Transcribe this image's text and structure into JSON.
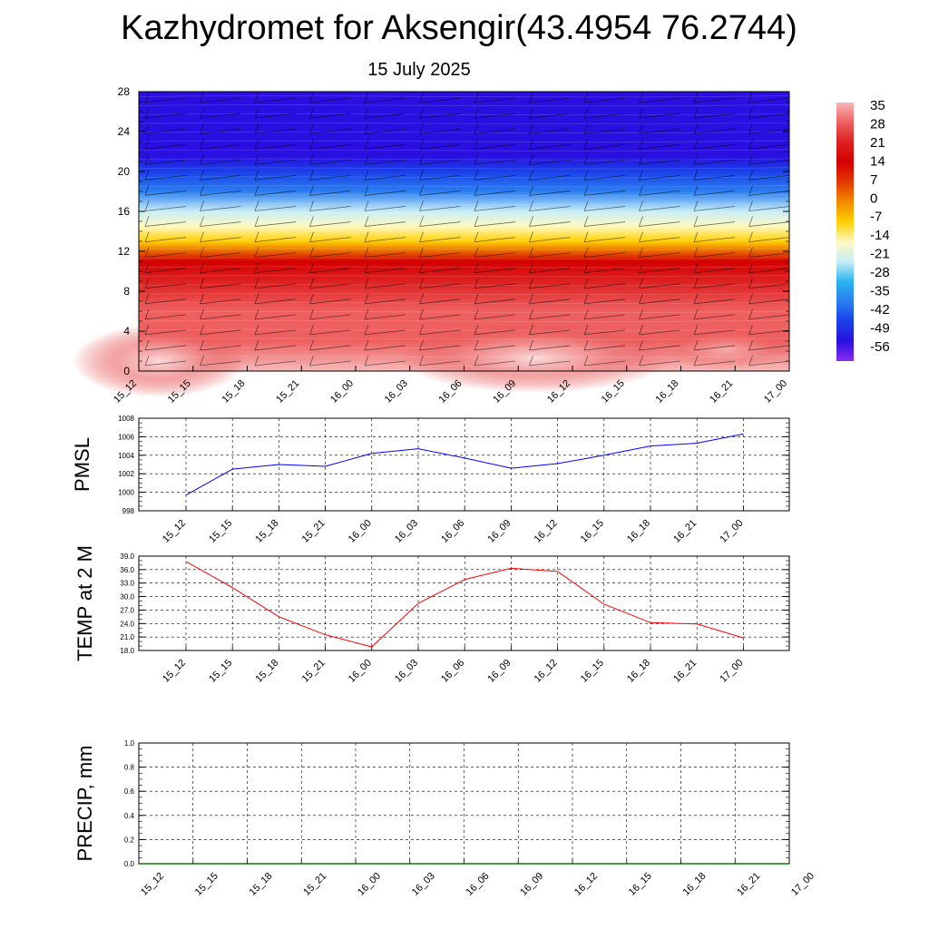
{
  "header": {
    "title": "Kazhydromet for Aksengir(43.4954 76.2744)",
    "subtitle": "15 July 2025"
  },
  "colorbar": {
    "labels": [
      "35",
      "28",
      "21",
      "14",
      "7",
      "0",
      "-7",
      "-14",
      "-21",
      "-28",
      "-35",
      "-42",
      "-49",
      "-56"
    ],
    "colors": [
      "#f6b8b8",
      "#ee6060",
      "#dd2020",
      "#d40000",
      "#e33a00",
      "#f28a00",
      "#ffd000",
      "#fff8c0",
      "#c8eef8",
      "#2ab4ee",
      "#2a7ef0",
      "#1a40e8",
      "#2a10e0",
      "#8a2cf0"
    ]
  },
  "chart_data": [
    {
      "type": "heatmap",
      "title": "",
      "x_ticks": [
        "15_12",
        "15_15",
        "15_18",
        "15_21",
        "16_00",
        "16_03",
        "16_06",
        "16_09",
        "16_12",
        "16_15",
        "16_18",
        "16_21",
        "17_00"
      ],
      "y_ticks": [
        0,
        4,
        8,
        12,
        16,
        20,
        24,
        28
      ],
      "ylim": [
        0,
        28
      ],
      "value_range": [
        -56,
        35
      ],
      "layers": [
        {
          "height": 0,
          "value": 30
        },
        {
          "height": 3,
          "value": 26
        },
        {
          "height": 6,
          "value": 21
        },
        {
          "height": 9,
          "value": 14
        },
        {
          "height": 11,
          "value": 7
        },
        {
          "height": 13,
          "value": -14
        },
        {
          "height": 14.5,
          "value": -21
        },
        {
          "height": 16,
          "value": -28
        },
        {
          "height": 18,
          "value": -40
        },
        {
          "height": 20,
          "value": -49
        },
        {
          "height": 21.5,
          "value": -56
        },
        {
          "height": 23,
          "value": -56
        },
        {
          "height": 28,
          "value": -56
        }
      ]
    },
    {
      "type": "line",
      "ylabel": "PMSL",
      "categories": [
        "15_12",
        "15_15",
        "15_18",
        "15_21",
        "16_00",
        "16_03",
        "16_06",
        "16_09",
        "16_12",
        "16_15",
        "16_18",
        "16_21",
        "17_00"
      ],
      "values": [
        999.7,
        1002.5,
        1003.0,
        1002.8,
        1004.2,
        1004.7,
        1003.7,
        1002.6,
        1003.1,
        1004.0,
        1005.0,
        1005.3,
        1006.3
      ],
      "y_ticks": [
        "998",
        "1000",
        "1002",
        "1004",
        "1006",
        "1008"
      ],
      "ylim": [
        998,
        1008
      ],
      "color": "#0000ff"
    },
    {
      "type": "line",
      "ylabel": "TEMP at 2 M",
      "categories": [
        "15_12",
        "15_15",
        "15_18",
        "15_21",
        "16_00",
        "16_03",
        "16_06",
        "16_09",
        "16_12",
        "16_15",
        "16_18",
        "16_21",
        "17_00"
      ],
      "values": [
        37.8,
        32.0,
        25.5,
        21.5,
        18.8,
        28.5,
        33.8,
        36.3,
        35.6,
        28.3,
        24.2,
        23.9,
        20.8
      ],
      "y_ticks": [
        "18.0",
        "21.0",
        "24.0",
        "27.0",
        "30.0",
        "33.0",
        "36.0",
        "39.0"
      ],
      "ylim": [
        18,
        39
      ],
      "color": "#ff0000"
    },
    {
      "type": "line",
      "ylabel": "PRECIP, mm",
      "categories": [
        "15_12",
        "15_15",
        "15_18",
        "15_21",
        "16_00",
        "16_03",
        "16_06",
        "16_09",
        "16_12",
        "16_15",
        "16_18",
        "16_21",
        "17_00"
      ],
      "values": [
        0,
        0,
        0,
        0,
        0,
        0,
        0,
        0,
        0,
        0,
        0,
        0,
        0
      ],
      "y_ticks": [
        "0.0",
        "0.2",
        "0.4",
        "0.6",
        "0.8",
        "1.0"
      ],
      "ylim": [
        0,
        1
      ],
      "color": "#008000"
    }
  ]
}
